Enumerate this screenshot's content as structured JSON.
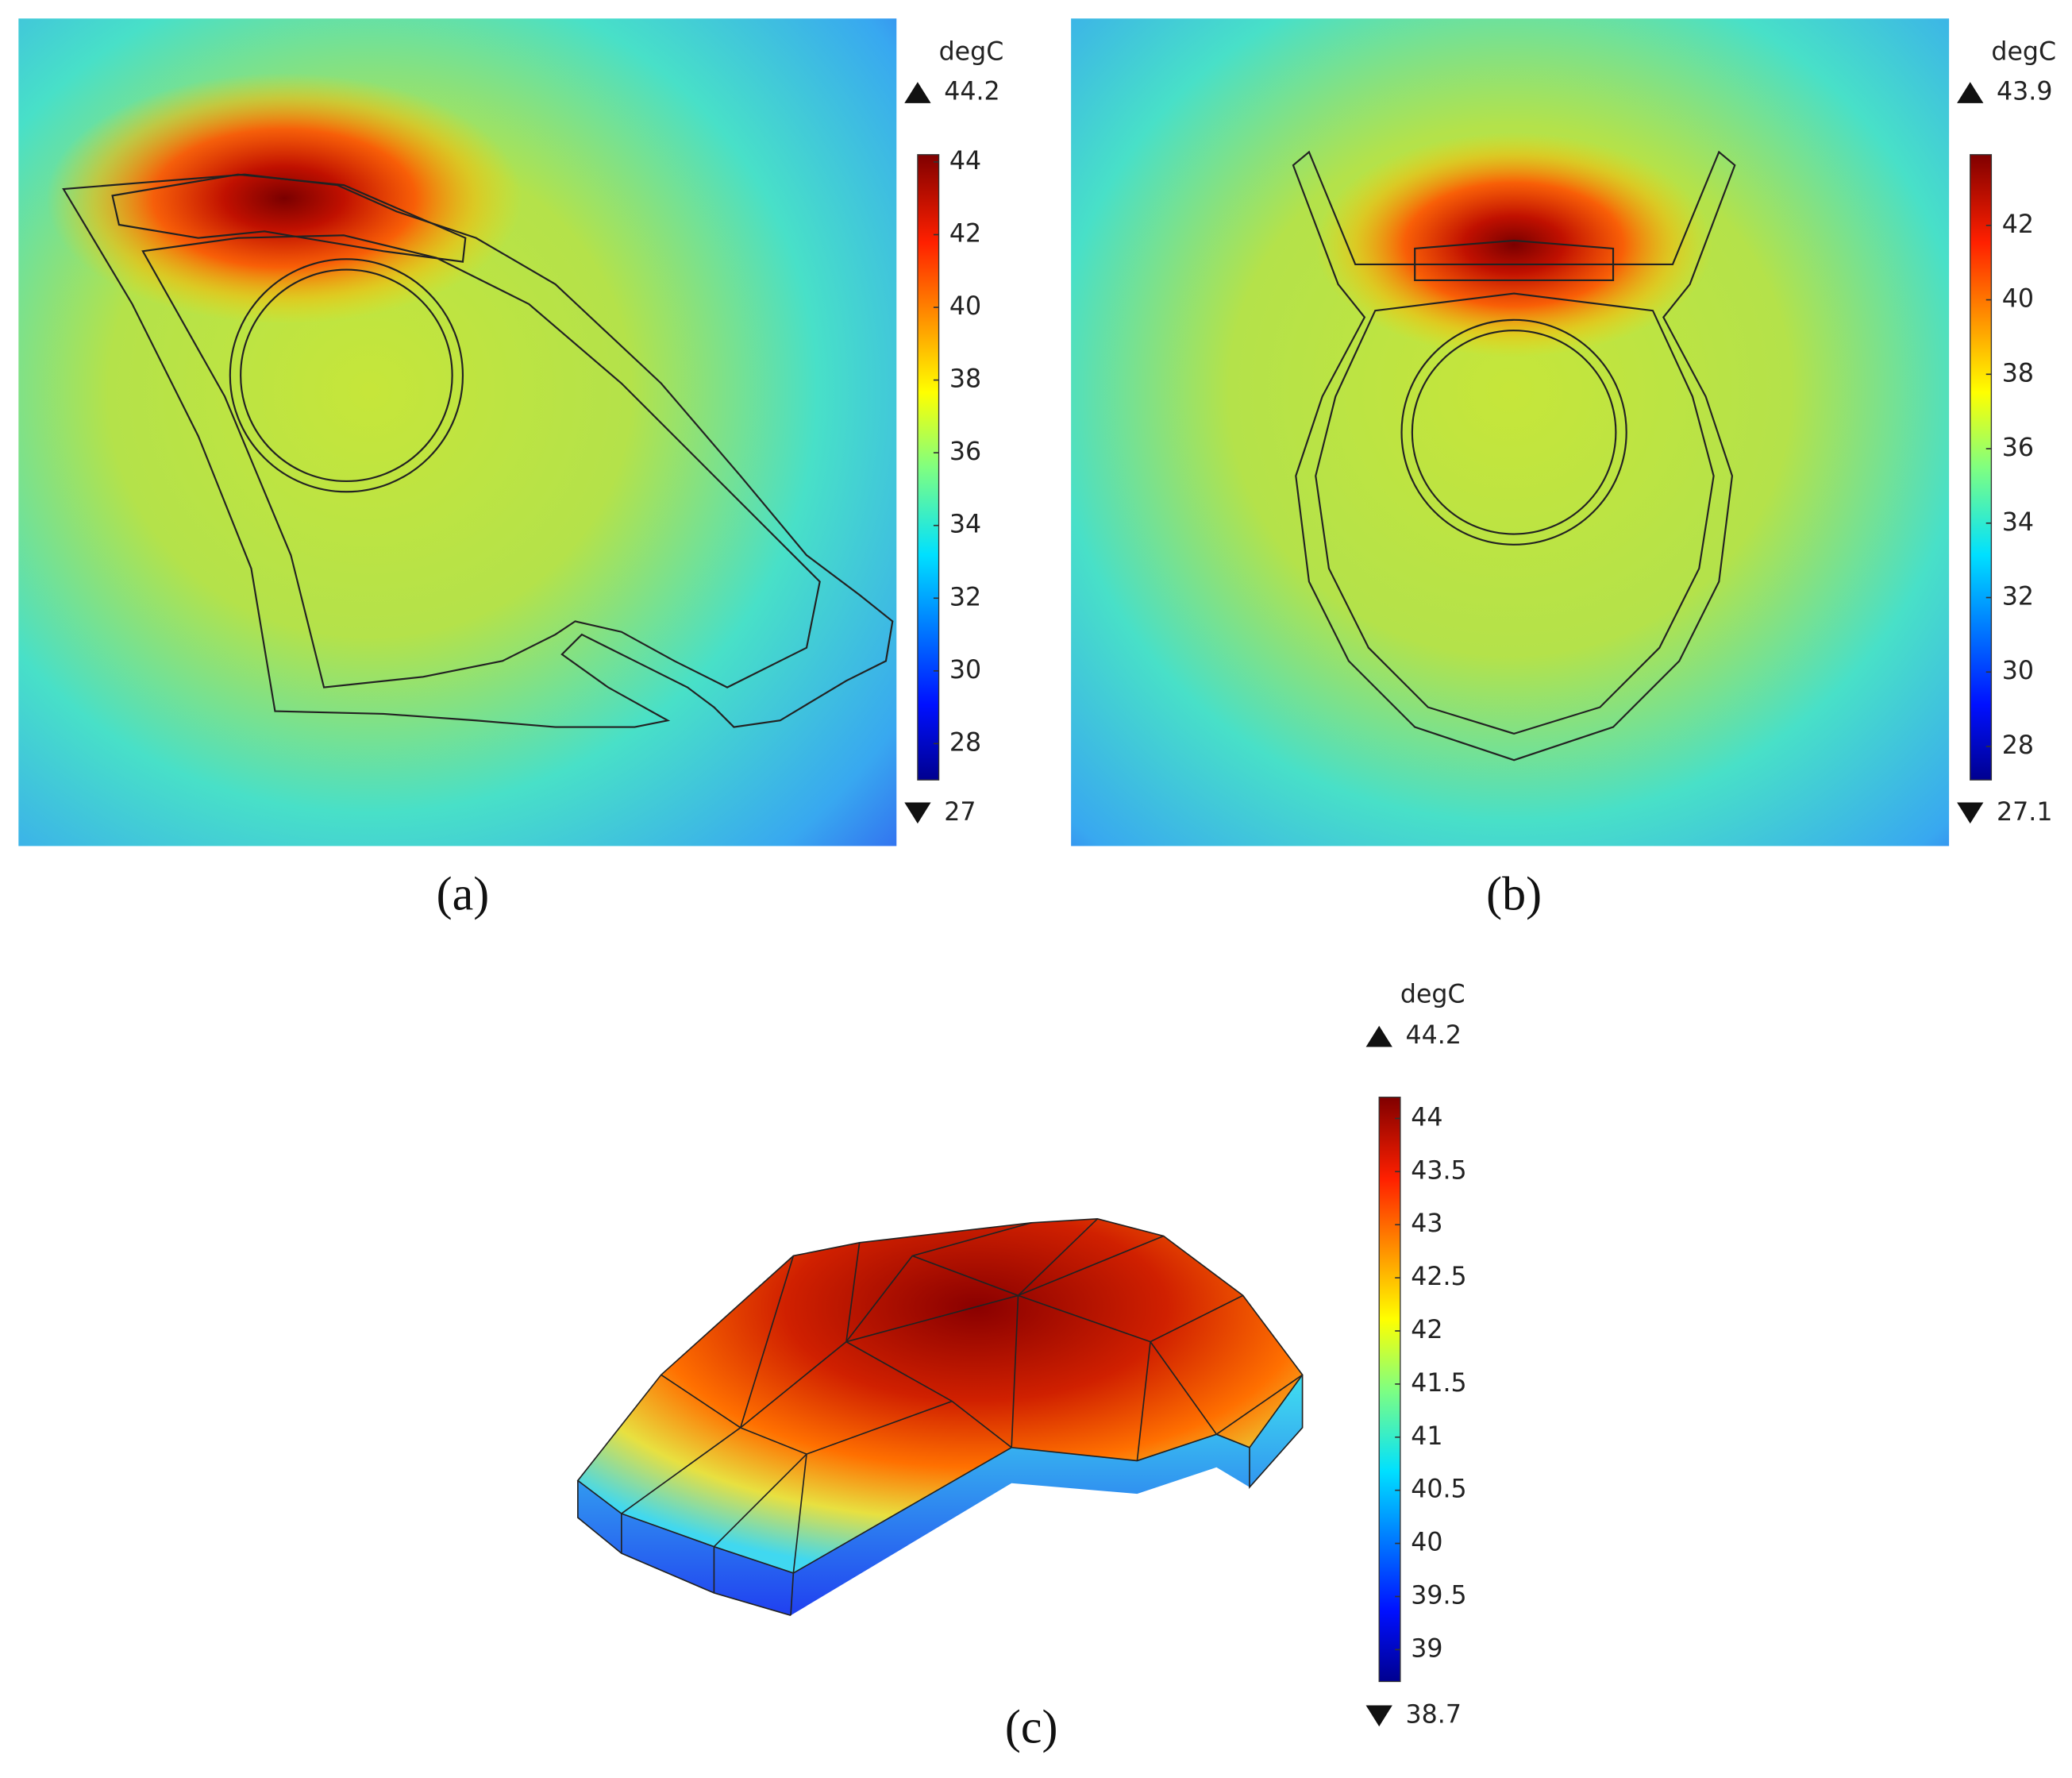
{
  "chart_data": [
    {
      "type": "heatmap",
      "caption": "(a)",
      "unit": "degC",
      "ylim": [
        27,
        44.2
      ],
      "yticks": [
        28,
        30,
        32,
        34,
        36,
        38,
        40,
        42,
        44
      ]
    },
    {
      "type": "heatmap",
      "caption": "(b)",
      "unit": "degC",
      "ylim": [
        27.1,
        43.9
      ],
      "yticks": [
        28,
        30,
        32,
        34,
        36,
        38,
        40,
        42
      ]
    },
    {
      "type": "heatmap",
      "caption": "(c)",
      "unit": "degC",
      "ylim": [
        38.7,
        44.2
      ],
      "yticks": [
        39,
        39.5,
        40,
        40.5,
        41,
        41.5,
        42,
        42.5,
        43,
        43.5,
        44
      ]
    }
  ]
}
